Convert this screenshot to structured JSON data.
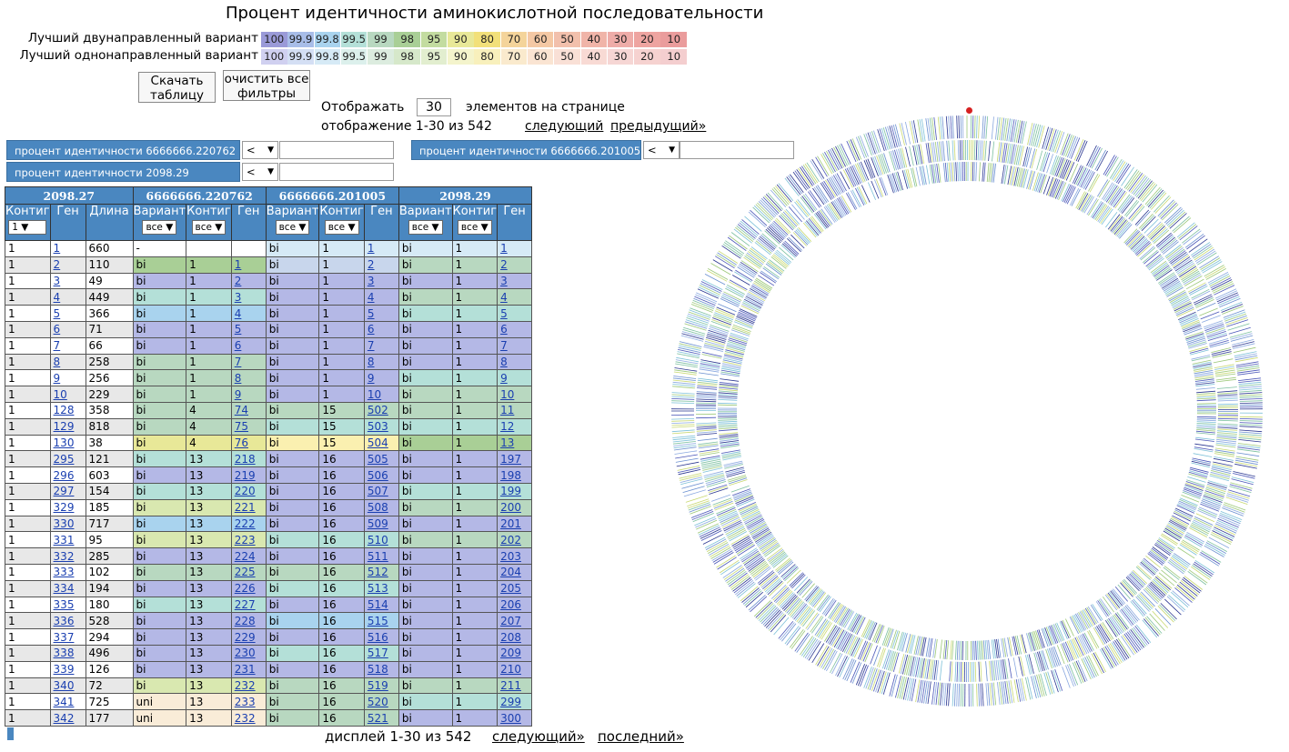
{
  "title": "Процент идентичности аминокислотной последовательности",
  "legend": {
    "bidirectional_label": "Лучший двунаправленный вариант",
    "unidirectional_label": "Лучший однонаправленный вариант",
    "values": [
      "100",
      "99.9",
      "99.8",
      "99.5",
      "99",
      "98",
      "95",
      "90",
      "80",
      "70",
      "60",
      "50",
      "40",
      "30",
      "20",
      "10"
    ],
    "bi_colors": [
      "#9a9ad8",
      "#a8bde8",
      "#a9d3ee",
      "#b4e0d8",
      "#b8d8c0",
      "#a9cf96",
      "#c3dca0",
      "#e8e898",
      "#f2e07a",
      "#f4d49a",
      "#f4c8a4",
      "#f2c0ac",
      "#f0b4a8",
      "#eeaca8",
      "#eea4a0",
      "#ea9c9c"
    ],
    "uni_colors": [
      "#d0d0f0",
      "#d4dff4",
      "#d6eaf6",
      "#dcf0ec",
      "#dcecdf",
      "#d6e8ca",
      "#e2eecf",
      "#f4f4cc",
      "#f8f0bc",
      "#faeacd",
      "#fae4d2",
      "#f9e0d6",
      "#f8dad4",
      "#f6d6d4",
      "#f6d2d0",
      "#f4cecf"
    ]
  },
  "buttons": {
    "download": "Скачать таблицу",
    "clear_filters": "очистить все фильтры"
  },
  "paging": {
    "show_label": "Отображать",
    "per_page": "30",
    "per_page_suffix": "элементов на странице",
    "top_status": "отображение 1-30 из 542",
    "next": "следующий",
    "prev": "предыдущий»",
    "bottom_status": "дисплей 1-30 из 542",
    "bottom_next": "следующий»",
    "bottom_last": "последний»"
  },
  "filters": [
    {
      "label": "процент идентичности 6666666.220762",
      "op": "<",
      "value": ""
    },
    {
      "label": "процент идентичности 6666666.201005",
      "op": "<",
      "value": ""
    },
    {
      "label": "процент идентичности 2098.29",
      "op": "<",
      "value": ""
    }
  ],
  "table": {
    "groups": [
      "2098.27",
      "6666666.220762",
      "6666666.201005",
      "2098.29"
    ],
    "columns": [
      "Контиг",
      "Ген",
      "Длина",
      "Вариант",
      "Контиг",
      "Ген",
      "Вариант",
      "Контиг",
      "Ген",
      "Вариант",
      "Контиг",
      "Ген"
    ],
    "contig_filter": "1",
    "variant_filter": "все",
    "contig2_filter": "все",
    "rows": [
      [
        "1",
        "1",
        "660",
        "-",
        "",
        "",
        "bi",
        "1",
        "1",
        "bi",
        "1",
        "1"
      ],
      [
        "1",
        "2",
        "110",
        "bi",
        "1",
        "1",
        "bi",
        "1",
        "2",
        "bi",
        "1",
        "2"
      ],
      [
        "1",
        "3",
        "49",
        "bi",
        "1",
        "2",
        "bi",
        "1",
        "3",
        "bi",
        "1",
        "3"
      ],
      [
        "1",
        "4",
        "449",
        "bi",
        "1",
        "3",
        "bi",
        "1",
        "4",
        "bi",
        "1",
        "4"
      ],
      [
        "1",
        "5",
        "366",
        "bi",
        "1",
        "4",
        "bi",
        "1",
        "5",
        "bi",
        "1",
        "5"
      ],
      [
        "1",
        "6",
        "71",
        "bi",
        "1",
        "5",
        "bi",
        "1",
        "6",
        "bi",
        "1",
        "6"
      ],
      [
        "1",
        "7",
        "66",
        "bi",
        "1",
        "6",
        "bi",
        "1",
        "7",
        "bi",
        "1",
        "7"
      ],
      [
        "1",
        "8",
        "258",
        "bi",
        "1",
        "7",
        "bi",
        "1",
        "8",
        "bi",
        "1",
        "8"
      ],
      [
        "1",
        "9",
        "256",
        "bi",
        "1",
        "8",
        "bi",
        "1",
        "9",
        "bi",
        "1",
        "9"
      ],
      [
        "1",
        "10",
        "229",
        "bi",
        "1",
        "9",
        "bi",
        "1",
        "10",
        "bi",
        "1",
        "10"
      ],
      [
        "1",
        "128",
        "358",
        "bi",
        "4",
        "74",
        "bi",
        "15",
        "502",
        "bi",
        "1",
        "11"
      ],
      [
        "1",
        "129",
        "818",
        "bi",
        "4",
        "75",
        "bi",
        "15",
        "503",
        "bi",
        "1",
        "12"
      ],
      [
        "1",
        "130",
        "38",
        "bi",
        "4",
        "76",
        "bi",
        "15",
        "504",
        "bi",
        "1",
        "13"
      ],
      [
        "1",
        "295",
        "121",
        "bi",
        "13",
        "218",
        "bi",
        "16",
        "505",
        "bi",
        "1",
        "197"
      ],
      [
        "1",
        "296",
        "603",
        "bi",
        "13",
        "219",
        "bi",
        "16",
        "506",
        "bi",
        "1",
        "198"
      ],
      [
        "1",
        "297",
        "154",
        "bi",
        "13",
        "220",
        "bi",
        "16",
        "507",
        "bi",
        "1",
        "199"
      ],
      [
        "1",
        "329",
        "185",
        "bi",
        "13",
        "221",
        "bi",
        "16",
        "508",
        "bi",
        "1",
        "200"
      ],
      [
        "1",
        "330",
        "717",
        "bi",
        "13",
        "222",
        "bi",
        "16",
        "509",
        "bi",
        "1",
        "201"
      ],
      [
        "1",
        "331",
        "95",
        "bi",
        "13",
        "223",
        "bi",
        "16",
        "510",
        "bi",
        "1",
        "202"
      ],
      [
        "1",
        "332",
        "285",
        "bi",
        "13",
        "224",
        "bi",
        "16",
        "511",
        "bi",
        "1",
        "203"
      ],
      [
        "1",
        "333",
        "102",
        "bi",
        "13",
        "225",
        "bi",
        "16",
        "512",
        "bi",
        "1",
        "204"
      ],
      [
        "1",
        "334",
        "194",
        "bi",
        "13",
        "226",
        "bi",
        "16",
        "513",
        "bi",
        "1",
        "205"
      ],
      [
        "1",
        "335",
        "180",
        "bi",
        "13",
        "227",
        "bi",
        "16",
        "514",
        "bi",
        "1",
        "206"
      ],
      [
        "1",
        "336",
        "528",
        "bi",
        "13",
        "228",
        "bi",
        "16",
        "515",
        "bi",
        "1",
        "207"
      ],
      [
        "1",
        "337",
        "294",
        "bi",
        "13",
        "229",
        "bi",
        "16",
        "516",
        "bi",
        "1",
        "208"
      ],
      [
        "1",
        "338",
        "496",
        "bi",
        "13",
        "230",
        "bi",
        "16",
        "517",
        "bi",
        "1",
        "209"
      ],
      [
        "1",
        "339",
        "126",
        "bi",
        "13",
        "231",
        "bi",
        "16",
        "518",
        "bi",
        "1",
        "210"
      ],
      [
        "1",
        "340",
        "72",
        "bi",
        "13",
        "232",
        "bi",
        "16",
        "519",
        "bi",
        "1",
        "211"
      ],
      [
        "1",
        "341",
        "725",
        "uni",
        "13",
        "233",
        "bi",
        "16",
        "520",
        "bi",
        "1",
        "299"
      ],
      [
        "1",
        "342",
        "177",
        "uni",
        "13",
        "232",
        "bi",
        "16",
        "521",
        "bi",
        "1",
        "300"
      ]
    ],
    "row_colors": [
      [
        "#ffffff",
        "#d6eaf6",
        "#d6eaf6"
      ],
      [
        "#a9cf96",
        "#c8d6ec",
        "#b8d8c0"
      ],
      [
        "#b4b8e6",
        "#b4b8e6",
        "#b4b8e6"
      ],
      [
        "#b4e0d8",
        "#b4b8e6",
        "#b8d8c0"
      ],
      [
        "#a9d3ee",
        "#b4b8e6",
        "#b4e0d8"
      ],
      [
        "#b4b8e6",
        "#b4b8e6",
        "#b4b8e6"
      ],
      [
        "#b4b8e6",
        "#b4b8e6",
        "#b4b8e6"
      ],
      [
        "#b8d8c0",
        "#b4b8e6",
        "#b4b8e6"
      ],
      [
        "#b8d8c0",
        "#b4b8e6",
        "#b4e0d8"
      ],
      [
        "#b8d8c0",
        "#b4b8e6",
        "#b8d8c0"
      ],
      [
        "#b8d8c0",
        "#b8d8c0",
        "#b8d8c0"
      ],
      [
        "#b8d8c0",
        "#b4e0d8",
        "#b4e0d8"
      ],
      [
        "#e8e898",
        "#faf0b0",
        "#a9cf96"
      ],
      [
        "#b4e0d8",
        "#b4b8e6",
        "#b4b8e6"
      ],
      [
        "#b4b8e6",
        "#b4b8e6",
        "#b4b8e6"
      ],
      [
        "#b4e0d8",
        "#b4b8e6",
        "#b4e0d8"
      ],
      [
        "#d9e8b0",
        "#b4b8e6",
        "#b8d8c0"
      ],
      [
        "#a9d3ee",
        "#b4b8e6",
        "#b4b8e6"
      ],
      [
        "#d9e8b0",
        "#b4e0d8",
        "#b8d8c0"
      ],
      [
        "#b4b8e6",
        "#b4b8e6",
        "#b4b8e6"
      ],
      [
        "#b8d8c0",
        "#b8d8c0",
        "#b4b8e6"
      ],
      [
        "#b4b8e6",
        "#b4e0d8",
        "#b4b8e6"
      ],
      [
        "#b4e0d8",
        "#b4b8e6",
        "#b4b8e6"
      ],
      [
        "#b4b8e6",
        "#a9d3ee",
        "#b4b8e6"
      ],
      [
        "#b4b8e6",
        "#b4b8e6",
        "#b4b8e6"
      ],
      [
        "#b4b8e6",
        "#b4e0d8",
        "#b4b8e6"
      ],
      [
        "#b4b8e6",
        "#b4b8e6",
        "#b4b8e6"
      ],
      [
        "#d9e8b0",
        "#b8d8c0",
        "#b8d8c0"
      ],
      [
        "#f9ecd8",
        "#b8d8c0",
        "#b4e0d8"
      ],
      [
        "#f9ecd8",
        "#b8d8c0",
        "#b4b8e6"
      ]
    ]
  },
  "ring": {
    "tracks": 3,
    "colors": [
      "#4a56b8",
      "#6a8fd0",
      "#7cc0d8",
      "#7cc0a0",
      "#9cc878",
      "#c8d870",
      "#2a3690",
      "#8aa8e0"
    ]
  }
}
